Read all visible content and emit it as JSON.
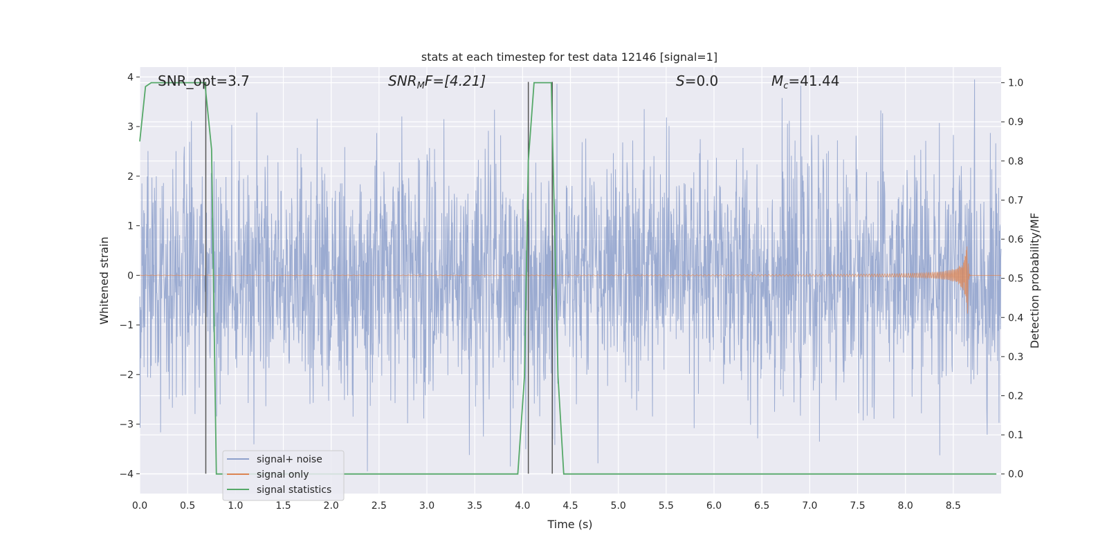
{
  "chart_data": {
    "type": "line",
    "title": "stats at each timestep for test data 12146 [signal=1]",
    "xlabel": "Time (s)",
    "ylabel": "Whitened strain",
    "y2label": "Detection probability/MF",
    "xlim": [
      0.0,
      9.0
    ],
    "ylim": [
      -4.4,
      4.2
    ],
    "y2lim": [
      -0.05,
      1.04
    ],
    "xticks": [
      "0.0",
      "0.5",
      "1.0",
      "1.5",
      "2.0",
      "2.5",
      "3.0",
      "3.5",
      "4.0",
      "4.5",
      "5.0",
      "5.5",
      "6.0",
      "6.5",
      "7.0",
      "7.5",
      "8.0",
      "8.5"
    ],
    "yticks": [
      "4",
      "3",
      "2",
      "1",
      "0",
      "−1",
      "−2",
      "−3",
      "−4"
    ],
    "y2ticks": [
      "1.0",
      "0.9",
      "0.8",
      "0.7",
      "0.6",
      "0.5",
      "0.4",
      "0.3",
      "0.2",
      "0.1",
      "0.0"
    ],
    "grid": true,
    "legend_position": "lower-left",
    "annotations": {
      "snr_opt": "SNR_opt=3.7",
      "snr_mf_pre": "SNR",
      "snr_mf_sub": "M",
      "snr_mf_post": "F=[4.21]",
      "s_var": "S",
      "s_val": "=0.0",
      "mc_var": "M",
      "mc_sub": "c",
      "mc_val": "=41.44"
    },
    "series": [
      {
        "name": "signal+ noise",
        "color": "#8da0cb",
        "noise_amplitude_approx": 1.2,
        "x_range": [
          0.0,
          9.0
        ]
      },
      {
        "name": "signal only",
        "color": "#dd8452",
        "chirp_peak_time": 8.65,
        "chirp_peak_amplitude": 0.9
      },
      {
        "name": "signal statistics",
        "color": "#55a868",
        "axis": "right",
        "x": [
          0.0,
          0.06,
          0.12,
          0.3,
          0.5,
          0.62,
          0.68,
          0.75,
          0.8,
          0.85,
          3.95,
          4.02,
          4.06,
          4.12,
          4.2,
          4.3,
          4.37,
          4.43,
          8.95
        ],
        "y": [
          0.85,
          0.99,
          1.0,
          1.0,
          1.0,
          1.0,
          1.0,
          0.83,
          0.0,
          0.0,
          0.0,
          0.25,
          0.8,
          1.0,
          1.0,
          1.0,
          0.25,
          0.0,
          0.0
        ]
      }
    ],
    "vertical_markers": [
      0.69,
      4.06,
      4.31
    ],
    "vertical_marker_range": [
      -4.0,
      3.9
    ],
    "vertical_marker_color": "#555555"
  }
}
